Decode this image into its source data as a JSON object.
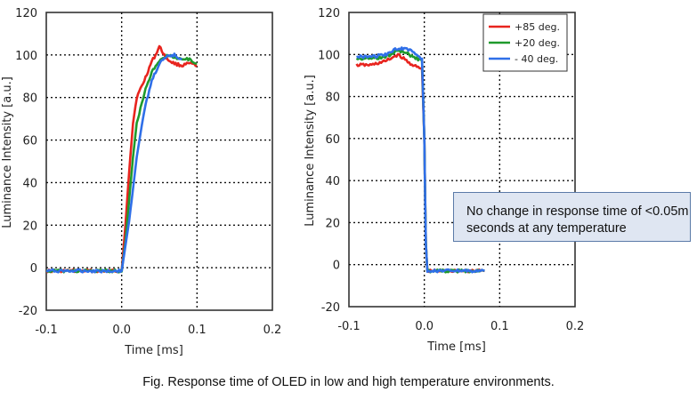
{
  "caption": "Fig. Response time of OLED in low and high temperature environments.",
  "annotation": "No change in response time of <0.05m seconds at any temperature",
  "series_colors": {
    "+85 deg.": "#e8241e",
    "+20 deg.": "#1f9a2c",
    "- 40 deg.": "#2f6fe8"
  },
  "chart_data": [
    {
      "type": "line",
      "title": "",
      "xlabel": "Time [ms]",
      "ylabel": "Luminance Intensity [a.u.]",
      "xlim": [
        -0.1,
        0.2
      ],
      "ylim": [
        -20,
        120
      ],
      "x_ticks": [
        "-0.1",
        "0.0",
        "0.1",
        "0.2"
      ],
      "x_tick_values": [
        -0.1,
        0.0,
        0.1,
        0.2
      ],
      "y_ticks": [
        -20,
        0,
        20,
        40,
        60,
        80,
        100,
        120
      ],
      "grid": true,
      "legend": null,
      "series": [
        {
          "name": "+85 deg.",
          "color": "#e8241e",
          "x": [
            -0.1,
            -0.05,
            0.0,
            0.005,
            0.01,
            0.015,
            0.02,
            0.03,
            0.04,
            0.045,
            0.05,
            0.055,
            0.06,
            0.07,
            0.08,
            0.09,
            0.1
          ],
          "y": [
            -1.5,
            -1.5,
            -1.5,
            20,
            45,
            68,
            80,
            88,
            97,
            100,
            104,
            101,
            98,
            96,
            95,
            96,
            95
          ]
        },
        {
          "name": "+20 deg.",
          "color": "#1f9a2c",
          "x": [
            -0.1,
            -0.05,
            0.0,
            0.005,
            0.01,
            0.015,
            0.02,
            0.03,
            0.04,
            0.05,
            0.06,
            0.07,
            0.08,
            0.09,
            0.1
          ],
          "y": [
            -1.5,
            -1.5,
            -1.5,
            12,
            32,
            52,
            68,
            82,
            92,
            97,
            100,
            99,
            98,
            98,
            96
          ]
        },
        {
          "name": "- 40 deg.",
          "color": "#2f6fe8",
          "x": [
            -0.1,
            -0.05,
            0.0,
            0.01,
            0.02,
            0.03,
            0.04,
            0.05,
            0.06,
            0.07,
            0.08
          ],
          "y": [
            -1.5,
            -1.5,
            -1.5,
            22,
            52,
            74,
            88,
            96,
            99,
            100,
            98
          ]
        }
      ]
    },
    {
      "type": "line",
      "title": "",
      "xlabel": "Time [ms]",
      "ylabel": "Luminance Intensity [a.u.]",
      "xlim": [
        -0.1,
        0.2
      ],
      "ylim": [
        -20,
        120
      ],
      "x_ticks": [
        "-0.1",
        "0.0",
        "0.1",
        "0.2"
      ],
      "x_tick_values": [
        -0.1,
        0.0,
        0.1,
        0.2
      ],
      "y_ticks": [
        -20,
        0,
        20,
        40,
        60,
        80,
        100,
        120
      ],
      "grid": true,
      "legend": "top-right",
      "series": [
        {
          "name": "+85 deg.",
          "color": "#e8241e",
          "x": [
            -0.09,
            -0.07,
            -0.05,
            -0.035,
            -0.02,
            -0.01,
            -0.003,
            0.0,
            0.002,
            0.004,
            0.01,
            0.03,
            0.06,
            0.08
          ],
          "y": [
            95,
            95,
            97,
            100,
            96,
            94,
            93,
            60,
            10,
            -3,
            -3,
            -3,
            -3,
            -3
          ]
        },
        {
          "name": "+20 deg.",
          "color": "#1f9a2c",
          "x": [
            -0.09,
            -0.07,
            -0.05,
            -0.035,
            -0.02,
            -0.01,
            -0.003,
            0.0,
            0.002,
            0.004,
            0.01,
            0.03,
            0.06,
            0.08
          ],
          "y": [
            98,
            98,
            99,
            102,
            100,
            98,
            97,
            60,
            10,
            -3,
            -3,
            -3,
            -3,
            -3
          ]
        },
        {
          "name": "- 40 deg.",
          "color": "#2f6fe8",
          "x": [
            -0.09,
            -0.07,
            -0.05,
            -0.035,
            -0.025,
            -0.01,
            -0.003,
            0.0,
            0.002,
            0.004,
            0.01,
            0.03,
            0.06,
            0.08
          ],
          "y": [
            99,
            99,
            100,
            103,
            103,
            100,
            98,
            60,
            10,
            -3,
            -3,
            -3,
            -3,
            -3
          ]
        }
      ]
    }
  ]
}
